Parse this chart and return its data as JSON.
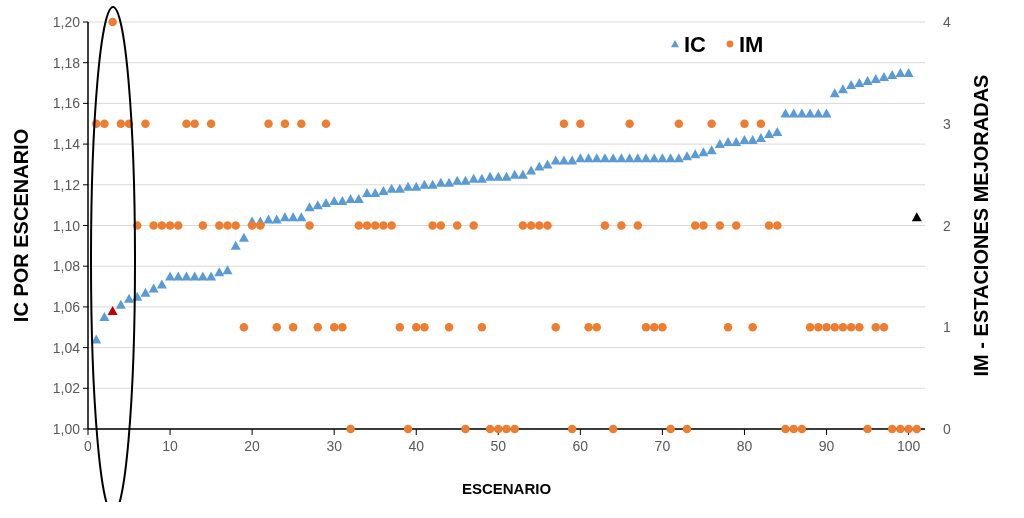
{
  "chart_data": {
    "type": "scatter",
    "xlabel": "ESCENARIO",
    "ylabel": "IC POR ESCENARIO",
    "y2label": "IM - ESTACIONES MEJORADAS",
    "xlim": [
      0,
      102
    ],
    "xticks": [
      0,
      10,
      20,
      30,
      40,
      50,
      60,
      70,
      80,
      90,
      100
    ],
    "ylim": [
      1.0,
      1.2
    ],
    "yticks": [
      {
        "value": 1.0,
        "label": "1,00"
      },
      {
        "value": 1.02,
        "label": "1,02"
      },
      {
        "value": 1.04,
        "label": "1,04"
      },
      {
        "value": 1.06,
        "label": "1,06"
      },
      {
        "value": 1.08,
        "label": "1,08"
      },
      {
        "value": 1.1,
        "label": "1,10"
      },
      {
        "value": 1.12,
        "label": "1,12"
      },
      {
        "value": 1.14,
        "label": "1,14"
      },
      {
        "value": 1.16,
        "label": "1,16"
      },
      {
        "value": 1.18,
        "label": "1,18"
      },
      {
        "value": 1.2,
        "label": "1,20"
      }
    ],
    "y2lim": [
      0,
      4
    ],
    "y2ticks": [
      0,
      1,
      2,
      3,
      4
    ],
    "grid": "y",
    "legend": "top right",
    "series": [
      {
        "name": "IC",
        "color": "#5b9bd5",
        "marker": "triangle",
        "x": [
          1,
          2,
          3,
          4,
          5,
          6,
          7,
          8,
          9,
          10,
          11,
          12,
          13,
          14,
          15,
          16,
          17,
          18,
          19,
          20,
          21,
          22,
          23,
          24,
          25,
          26,
          27,
          28,
          29,
          30,
          31,
          32,
          33,
          34,
          35,
          36,
          37,
          38,
          39,
          40,
          41,
          42,
          43,
          44,
          45,
          46,
          47,
          48,
          49,
          50,
          51,
          52,
          53,
          54,
          55,
          56,
          57,
          58,
          59,
          60,
          61,
          62,
          63,
          64,
          65,
          66,
          67,
          68,
          69,
          70,
          71,
          72,
          73,
          74,
          75,
          76,
          77,
          78,
          79,
          80,
          81,
          82,
          83,
          84,
          85,
          86,
          87,
          88,
          89,
          90,
          91,
          92,
          93,
          94,
          95,
          96,
          97,
          98,
          99,
          100
        ],
        "values": [
          1.044,
          1.055,
          1.058,
          1.061,
          1.064,
          1.065,
          1.067,
          1.069,
          1.071,
          1.075,
          1.075,
          1.075,
          1.075,
          1.075,
          1.075,
          1.077,
          1.078,
          1.09,
          1.094,
          1.102,
          1.102,
          1.103,
          1.103,
          1.104,
          1.104,
          1.104,
          1.109,
          1.11,
          1.111,
          1.112,
          1.112,
          1.113,
          1.113,
          1.116,
          1.116,
          1.117,
          1.118,
          1.118,
          1.119,
          1.119,
          1.12,
          1.12,
          1.121,
          1.121,
          1.122,
          1.122,
          1.123,
          1.123,
          1.124,
          1.124,
          1.124,
          1.125,
          1.125,
          1.127,
          1.129,
          1.13,
          1.132,
          1.132,
          1.132,
          1.133,
          1.133,
          1.133,
          1.133,
          1.133,
          1.133,
          1.133,
          1.133,
          1.133,
          1.133,
          1.133,
          1.133,
          1.133,
          1.134,
          1.135,
          1.136,
          1.137,
          1.14,
          1.141,
          1.141,
          1.142,
          1.142,
          1.143,
          1.145,
          1.146,
          1.155,
          1.155,
          1.155,
          1.155,
          1.155,
          1.155,
          1.165,
          1.167,
          1.169,
          1.17,
          1.171,
          1.172,
          1.173,
          1.174,
          1.175,
          1.175
        ],
        "colors": [
          "#5b9bd5",
          "#5b9bd5",
          "#c00000",
          "#5b9bd5",
          "#5b9bd5",
          "#5b9bd5",
          "#5b9bd5",
          "#5b9bd5",
          "#5b9bd5",
          "#5b9bd5",
          "#5b9bd5",
          "#5b9bd5",
          "#5b9bd5",
          "#5b9bd5",
          "#5b9bd5",
          "#5b9bd5",
          "#5b9bd5",
          "#5b9bd5",
          "#5b9bd5",
          "#5b9bd5",
          "#5b9bd5",
          "#5b9bd5",
          "#5b9bd5",
          "#5b9bd5",
          "#5b9bd5",
          "#5b9bd5",
          "#5b9bd5",
          "#5b9bd5",
          "#5b9bd5",
          "#5b9bd5",
          "#5b9bd5",
          "#5b9bd5",
          "#5b9bd5",
          "#5b9bd5",
          "#5b9bd5",
          "#5b9bd5",
          "#5b9bd5",
          "#5b9bd5",
          "#5b9bd5",
          "#5b9bd5",
          "#5b9bd5",
          "#5b9bd5",
          "#5b9bd5",
          "#5b9bd5",
          "#5b9bd5",
          "#5b9bd5",
          "#5b9bd5",
          "#5b9bd5",
          "#5b9bd5",
          "#5b9bd5",
          "#5b9bd5",
          "#5b9bd5",
          "#5b9bd5",
          "#5b9bd5",
          "#5b9bd5",
          "#5b9bd5",
          "#5b9bd5",
          "#5b9bd5",
          "#5b9bd5",
          "#5b9bd5",
          "#5b9bd5",
          "#5b9bd5",
          "#5b9bd5",
          "#5b9bd5",
          "#5b9bd5",
          "#5b9bd5",
          "#5b9bd5",
          "#5b9bd5",
          "#5b9bd5",
          "#5b9bd5",
          "#5b9bd5",
          "#5b9bd5",
          "#5b9bd5",
          "#5b9bd5",
          "#5b9bd5",
          "#5b9bd5",
          "#5b9bd5",
          "#5b9bd5",
          "#5b9bd5",
          "#5b9bd5",
          "#5b9bd5",
          "#5b9bd5",
          "#5b9bd5",
          "#5b9bd5",
          "#5b9bd5",
          "#5b9bd5",
          "#5b9bd5",
          "#5b9bd5",
          "#5b9bd5",
          "#5b9bd5",
          "#5b9bd5",
          "#5b9bd5",
          "#5b9bd5",
          "#5b9bd5",
          "#5b9bd5",
          "#5b9bd5",
          "#5b9bd5",
          "#5b9bd5",
          "#5b9bd5",
          "#5b9bd5"
        ]
      },
      {
        "name": "IM",
        "color": "#ed7d31",
        "marker": "circle",
        "axis": "y2",
        "x": [
          1,
          2,
          3,
          4,
          5,
          6,
          7,
          8,
          9,
          10,
          11,
          12,
          13,
          14,
          15,
          16,
          17,
          18,
          19,
          20,
          21,
          22,
          23,
          24,
          25,
          26,
          27,
          28,
          29,
          30,
          31,
          32,
          33,
          34,
          35,
          36,
          37,
          38,
          39,
          40,
          41,
          42,
          43,
          44,
          45,
          46,
          47,
          48,
          49,
          50,
          51,
          52,
          53,
          54,
          55,
          56,
          57,
          58,
          59,
          60,
          61,
          62,
          63,
          64,
          65,
          66,
          67,
          68,
          69,
          70,
          71,
          72,
          73,
          74,
          75,
          76,
          77,
          78,
          79,
          80,
          81,
          82,
          83,
          84,
          85,
          86,
          87,
          88,
          89,
          90,
          91,
          92,
          93,
          94,
          95,
          96,
          97,
          98,
          99,
          100,
          101
        ],
        "values": [
          3,
          3,
          4,
          3,
          3,
          2,
          3,
          2,
          2,
          2,
          2,
          3,
          3,
          2,
          3,
          2,
          2,
          2,
          1,
          2,
          2,
          3,
          1,
          3,
          1,
          3,
          2,
          1,
          3,
          1,
          1,
          0,
          2,
          2,
          2,
          2,
          2,
          1,
          0,
          1,
          1,
          2,
          2,
          1,
          2,
          0,
          2,
          1,
          0,
          0,
          0,
          0,
          2,
          2,
          2,
          2,
          1,
          3,
          0,
          3,
          1,
          1,
          2,
          0,
          2,
          3,
          2,
          1,
          1,
          1,
          0,
          3,
          0,
          2,
          2,
          3,
          2,
          1,
          2,
          3,
          1,
          3,
          2,
          2,
          0,
          0,
          0,
          1,
          1,
          1,
          1,
          1,
          1,
          1,
          0,
          1,
          1,
          0,
          0,
          0,
          0
        ]
      },
      {
        "color": "#000000",
        "marker": "triangle",
        "x": [
          101
        ],
        "values": [
          1.104
        ]
      }
    ]
  }
}
